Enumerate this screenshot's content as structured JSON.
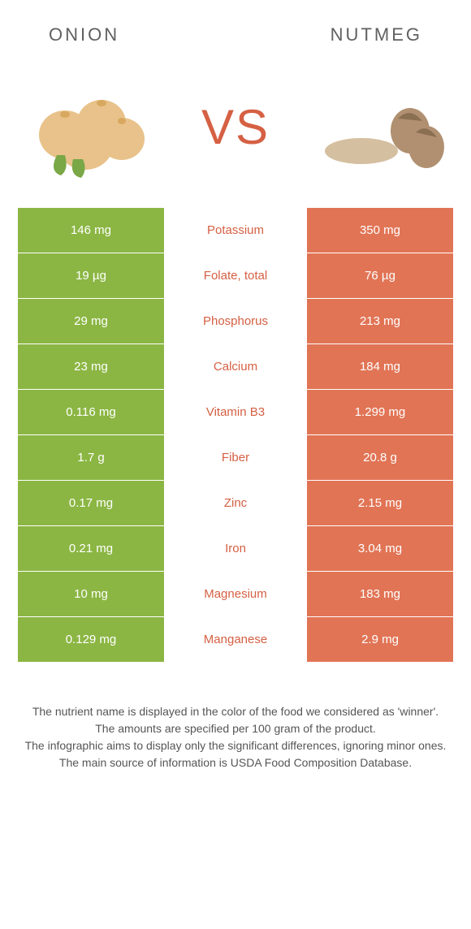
{
  "header": {
    "left_title": "Onion",
    "right_title": "Nutmeg",
    "vs_label": "VS"
  },
  "colors": {
    "left_bg": "#8bb643",
    "right_bg": "#e17455",
    "nutrient_winner_right": "#d56043",
    "text": "#555555"
  },
  "table": {
    "rows": [
      {
        "left": "146 mg",
        "nutrient": "Potassium",
        "right": "350 mg",
        "winner": "right"
      },
      {
        "left": "19 µg",
        "nutrient": "Folate, total",
        "right": "76 µg",
        "winner": "right"
      },
      {
        "left": "29 mg",
        "nutrient": "Phosphorus",
        "right": "213 mg",
        "winner": "right"
      },
      {
        "left": "23 mg",
        "nutrient": "Calcium",
        "right": "184 mg",
        "winner": "right"
      },
      {
        "left": "0.116 mg",
        "nutrient": "Vitamin B3",
        "right": "1.299 mg",
        "winner": "right"
      },
      {
        "left": "1.7 g",
        "nutrient": "Fiber",
        "right": "20.8 g",
        "winner": "right"
      },
      {
        "left": "0.17 mg",
        "nutrient": "Zinc",
        "right": "2.15 mg",
        "winner": "right"
      },
      {
        "left": "0.21 mg",
        "nutrient": "Iron",
        "right": "3.04 mg",
        "winner": "right"
      },
      {
        "left": "10 mg",
        "nutrient": "Magnesium",
        "right": "183 mg",
        "winner": "right"
      },
      {
        "left": "0.129 mg",
        "nutrient": "Manganese",
        "right": "2.9 mg",
        "winner": "right"
      }
    ]
  },
  "footnotes": {
    "line1": "The nutrient name is displayed in the color of the food we considered as 'winner'.",
    "line2": "The amounts are specified per 100 gram of the product.",
    "line3": "The infographic aims to display only the significant differences, ignoring minor ones.",
    "line4": "The main source of information is USDA Food Composition Database."
  }
}
